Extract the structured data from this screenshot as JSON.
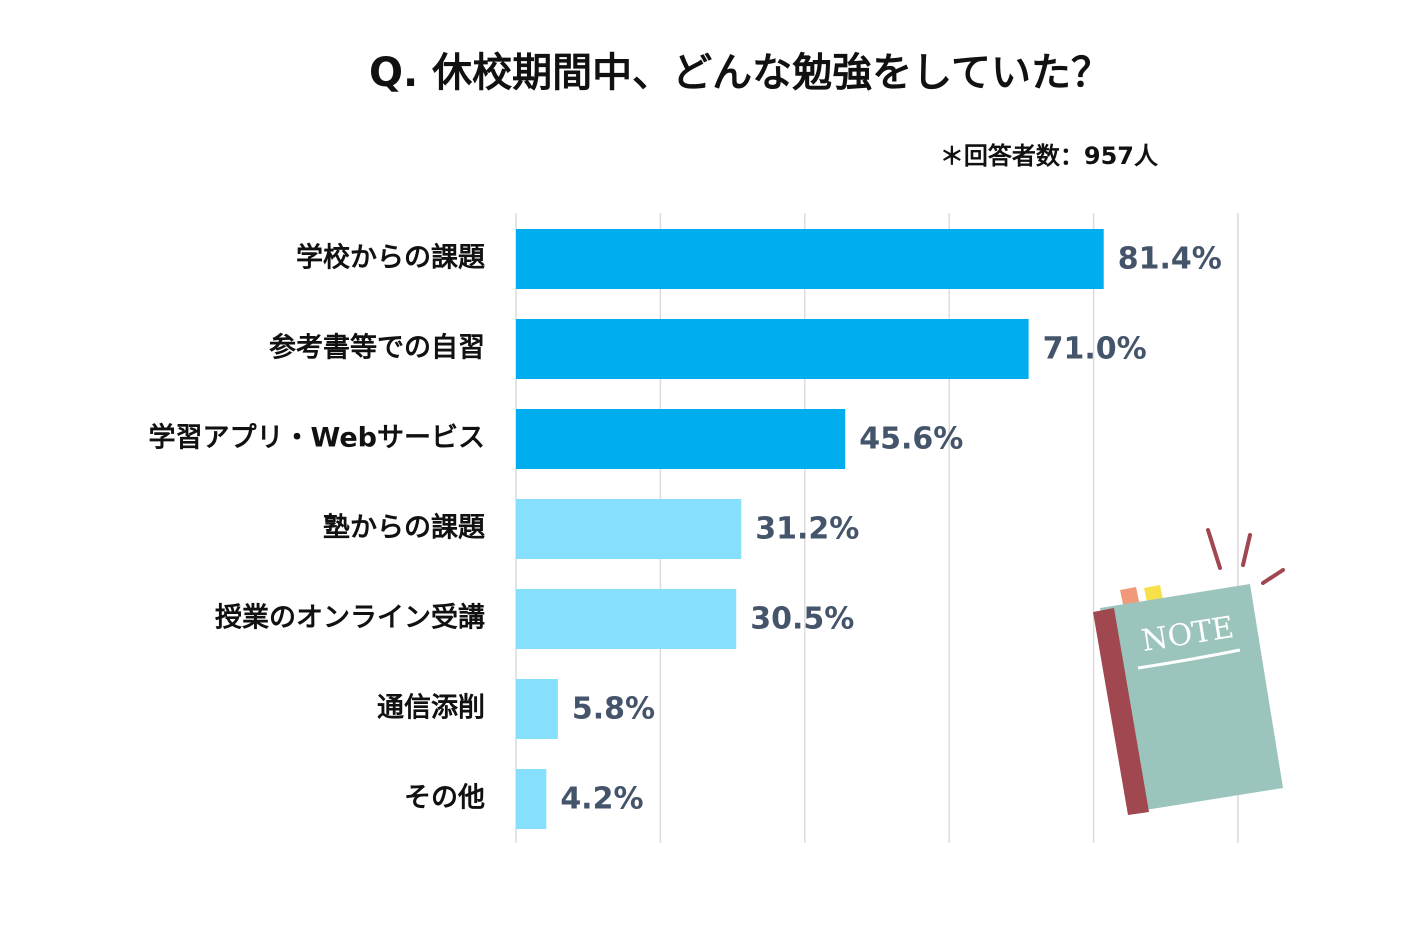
{
  "chart_data": {
    "type": "bar",
    "orientation": "horizontal",
    "title": "Q. 休校期間中、どんな勉強をしていた？",
    "subtitle": "＊回答者数：957人",
    "categories": [
      "学校からの課題",
      "参考書等での自習",
      "学習アプリ・Webサービス",
      "塾からの課題",
      "授業のオンライン受講",
      "通信添削",
      "その他"
    ],
    "values": [
      81.4,
      71.0,
      45.6,
      31.2,
      30.5,
      5.8,
      4.2
    ],
    "value_labels": [
      "81.4%",
      "71.0%",
      "45.6%",
      "31.2%",
      "30.5%",
      "5.8%",
      "4.2%"
    ],
    "colors": [
      "#00aeef",
      "#00aeef",
      "#00aeef",
      "#86dffd",
      "#86dffd",
      "#86dffd",
      "#86dffd"
    ],
    "xlim": [
      0,
      100
    ],
    "xticks": [
      0,
      20,
      40,
      60,
      80,
      100
    ],
    "grid": true
  }
}
